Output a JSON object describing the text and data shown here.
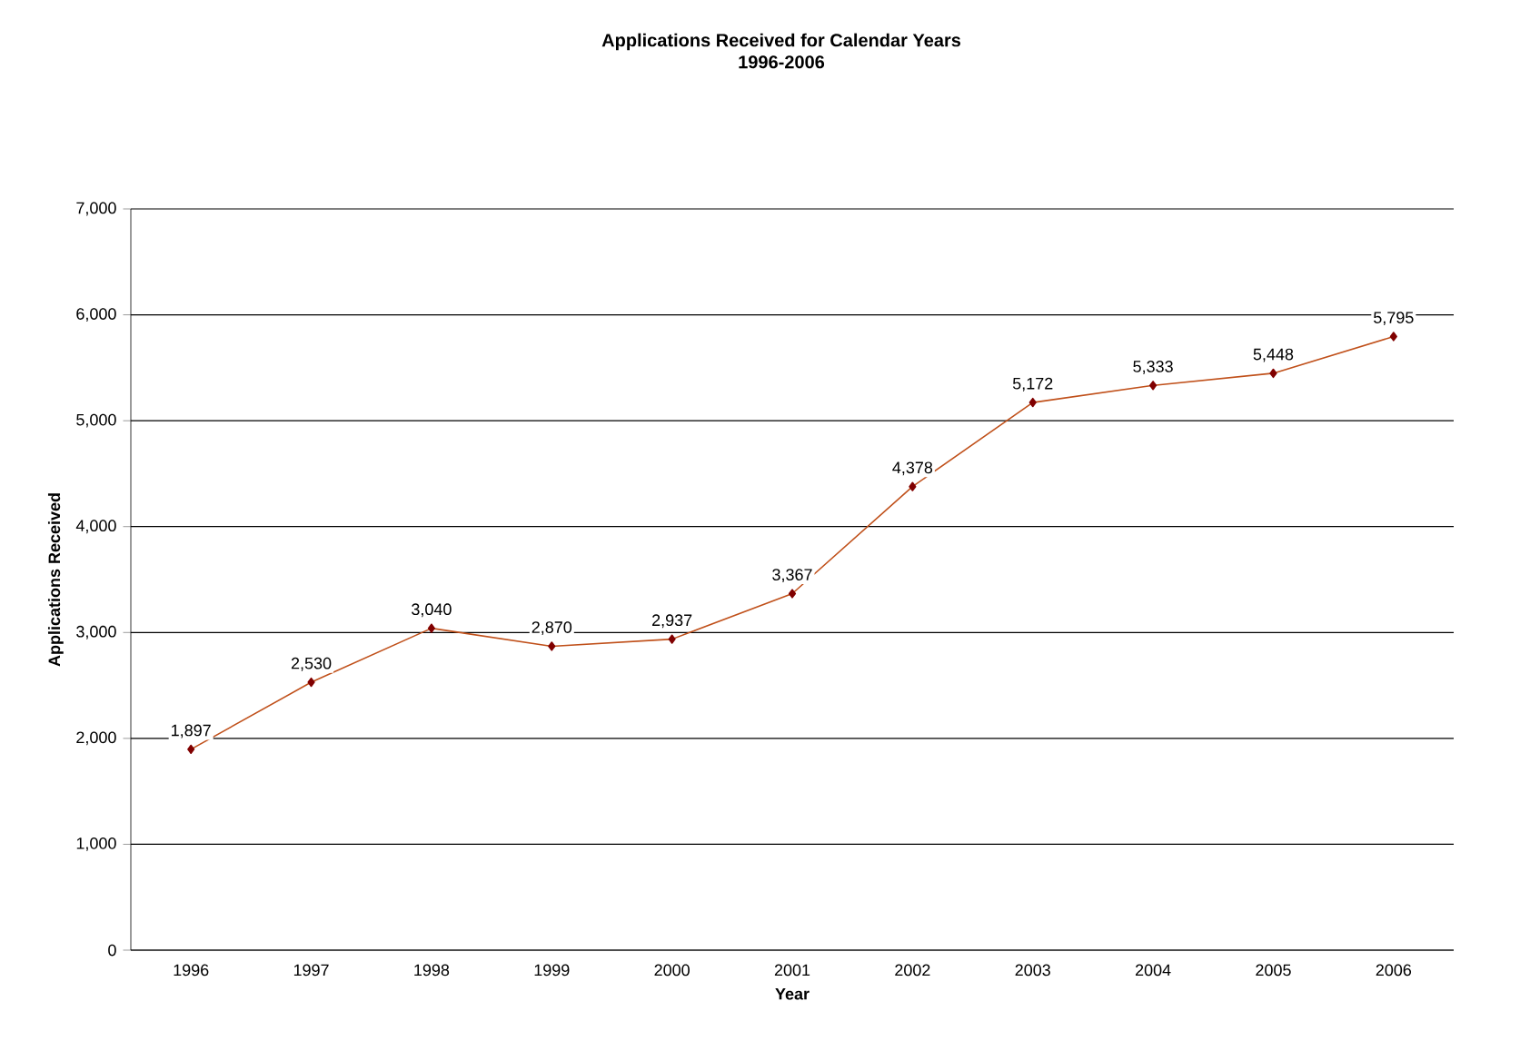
{
  "chart_data": {
    "type": "line",
    "title": "Applications Received for Calendar Years",
    "subtitle": "1996-2006",
    "xlabel": "Year",
    "ylabel": "Applications Received",
    "categories": [
      "1996",
      "1997",
      "1998",
      "1999",
      "2000",
      "2001",
      "2002",
      "2003",
      "2004",
      "2005",
      "2006"
    ],
    "series": [
      {
        "color": "#c0501a",
        "values": [
          1897,
          2530,
          3040,
          2870,
          2937,
          3367,
          4378,
          5172,
          5333,
          5448,
          5795
        ],
        "value_labels": [
          "1,897",
          "2,530",
          "3,040",
          "2,870",
          "2,937",
          "3,367",
          "4,378",
          "5,172",
          "5,333",
          "5,448",
          "5,795"
        ]
      }
    ],
    "marker": "diamond",
    "grid": "y",
    "ylim": [
      0,
      7000
    ],
    "yticks": [
      {
        "value": 0,
        "label": "0"
      },
      {
        "value": 1000,
        "label": "1,000"
      },
      {
        "value": 2000,
        "label": "2,000"
      },
      {
        "value": 3000,
        "label": "3,000"
      },
      {
        "value": 4000,
        "label": "4,000"
      },
      {
        "value": 5000,
        "label": "5,000"
      },
      {
        "value": 6000,
        "label": "6,000"
      },
      {
        "value": 7000,
        "label": "7,000"
      }
    ]
  }
}
